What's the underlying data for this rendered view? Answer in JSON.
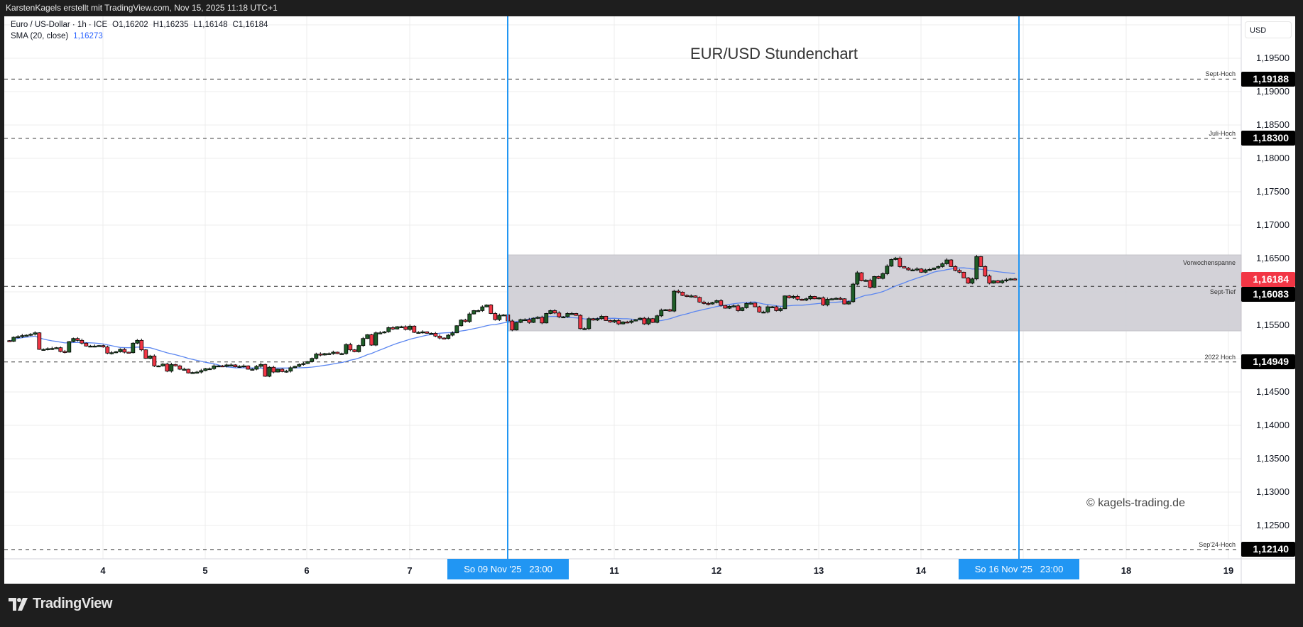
{
  "header": {
    "attribution": "KarstenKagels erstellt mit TradingView.com, Nov 15, 2025 11:18 UTC+1"
  },
  "legend": {
    "symbol": "Euro / US-Dollar · 1h · ICE",
    "open": "O1,16202",
    "high": "H1,16235",
    "low": "L1,16148",
    "close": "C1,16184",
    "sma_label": "SMA (20, close)",
    "sma_value": "1,16273"
  },
  "chart_title": "EUR/USD Stundenchart",
  "watermark": "© kagels-trading.de",
  "footer": {
    "brand": "TradingView",
    "logo_icon": "tradingview-logo"
  },
  "colors": {
    "up": "#1f5e28",
    "down": "#f23645",
    "sma": "#5b86f0",
    "marker": "#2196f3",
    "range_box": "#d1d0d6",
    "label_bg": "#000000",
    "last_price_bg": "#f23645"
  },
  "chart_data": {
    "type": "candlestick",
    "interval": "1h",
    "currency": "USD",
    "ylim": [
      1.1195,
      1.2
    ],
    "grid": true,
    "y_ticks": [
      "1,19500",
      "1,19000",
      "1,18500",
      "1,18000",
      "1,17500",
      "1,17000",
      "1,16500",
      "1,15500",
      "1,14500",
      "1,14000",
      "1,13500",
      "1,13000",
      "1,12500"
    ],
    "y_tick_values": [
      1.195,
      1.19,
      1.185,
      1.18,
      1.175,
      1.17,
      1.165,
      1.155,
      1.145,
      1.14,
      1.135,
      1.13,
      1.125
    ],
    "x_ticks": [
      "4",
      "5",
      "6",
      "7",
      "11",
      "12",
      "13",
      "14",
      "18",
      "19"
    ],
    "time_markers": [
      "So 09 Nov '25   23:00",
      "So 16 Nov '25   23:00"
    ],
    "levels": [
      {
        "label": "Sept-Hoch",
        "value": 1.19188,
        "display": "1,19188"
      },
      {
        "label": "Juli-Hoch",
        "value": 1.183,
        "display": "1,18300"
      },
      {
        "label": "Sept-Tief",
        "value": 1.16083,
        "display": "1,16083"
      },
      {
        "label": "2022 Hoch",
        "value": 1.14949,
        "display": "1,14949"
      },
      {
        "label": "Sep'24-Hoch",
        "value": 1.1214,
        "display": "1,12140"
      }
    ],
    "range_box": {
      "label": "Vorwochenspanne",
      "top": 1.16553,
      "bottom": 1.15415
    },
    "last_price": {
      "value": 1.16184,
      "display": "1,16184"
    },
    "sma_period": 20,
    "closes": [
      1.15259,
      1.15319,
      1.1533,
      1.15344,
      1.15351,
      1.15365,
      1.15386,
      1.15138,
      1.15138,
      1.15149,
      1.15152,
      1.15163,
      1.15106,
      1.15096,
      1.15255,
      1.15301,
      1.15273,
      1.15231,
      1.15188,
      1.15188,
      1.15188,
      1.15195,
      1.15174,
      1.15082,
      1.15088,
      1.15103,
      1.15138,
      1.15096,
      1.15088,
      1.15231,
      1.15273,
      1.15131,
      1.15003,
      1.15039,
      1.14891,
      1.14891,
      1.14918,
      1.14812,
      1.14912,
      1.14891,
      1.14841,
      1.14841,
      1.14785,
      1.14791,
      1.14798,
      1.1482,
      1.14849,
      1.14849,
      1.14891,
      1.14891,
      1.14884,
      1.14905,
      1.14905,
      1.14877,
      1.14884,
      1.14891,
      1.14841,
      1.14841,
      1.14884,
      1.14912,
      1.14735,
      1.1487,
      1.14798,
      1.14841,
      1.14805,
      1.14812,
      1.14863,
      1.14884,
      1.14912,
      1.14926,
      1.14955,
      1.15003,
      1.15068,
      1.15054,
      1.15075,
      1.15075,
      1.15096,
      1.15075,
      1.15075,
      1.1521,
      1.15131,
      1.15103,
      1.15195,
      1.15301,
      1.15358,
      1.15202,
      1.15386,
      1.15386,
      1.15401,
      1.15464,
      1.15443,
      1.15478,
      1.15478,
      1.15436,
      1.15486,
      1.15393,
      1.15393,
      1.15401,
      1.15379,
      1.15379,
      1.15337,
      1.15308,
      1.15301,
      1.15351,
      1.15386,
      1.15492,
      1.15577,
      1.15555,
      1.15669,
      1.15719,
      1.15719,
      1.15775,
      1.15804,
      1.15676,
      1.15584,
      1.15648,
      1.15655,
      1.15563,
      1.15428,
      1.15542,
      1.15584,
      1.15584,
      1.15542,
      1.15605,
      1.15619,
      1.15534,
      1.15676,
      1.15719,
      1.15683,
      1.15626,
      1.15626,
      1.15676,
      1.15676,
      1.15648,
      1.15449,
      1.15449,
      1.15598,
      1.15577,
      1.15598,
      1.15634,
      1.1557,
      1.15549,
      1.1557,
      1.1552,
      1.15549,
      1.15542,
      1.15563,
      1.15584,
      1.15605,
      1.1552,
      1.15598,
      1.15542,
      1.15641,
      1.15726,
      1.15733,
      1.15712,
      1.1601,
      1.15996,
      1.15946,
      1.15932,
      1.15939,
      1.15917,
      1.15847,
      1.15826,
      1.15818,
      1.1584,
      1.15868,
      1.15797,
      1.15755,
      1.15783,
      1.1579,
      1.15719,
      1.15762,
      1.15826,
      1.15832,
      1.15776,
      1.15698,
      1.15698,
      1.15776,
      1.15776,
      1.15719,
      1.15747,
      1.15939,
      1.15911,
      1.15932,
      1.15889,
      1.15875,
      1.15896,
      1.15932,
      1.15896,
      1.15911,
      1.15804,
      1.15889,
      1.15896,
      1.15903,
      1.15896,
      1.15818,
      1.15853,
      1.16116,
      1.16286,
      1.16166,
      1.16173,
      1.16066,
      1.1623,
      1.16201,
      1.16272,
      1.16385,
      1.16485,
      1.16506,
      1.16379,
      1.16357,
      1.16329,
      1.16329,
      1.16343,
      1.16294,
      1.16329,
      1.16336,
      1.16357,
      1.16379,
      1.16421,
      1.16478,
      1.16379,
      1.16321,
      1.16294,
      1.16209,
      1.1613,
      1.16194,
      1.16528,
      1.16379,
      1.16237,
      1.1613,
      1.16166,
      1.16137,
      1.16166,
      1.1618,
      1.16194,
      1.16184
    ]
  }
}
